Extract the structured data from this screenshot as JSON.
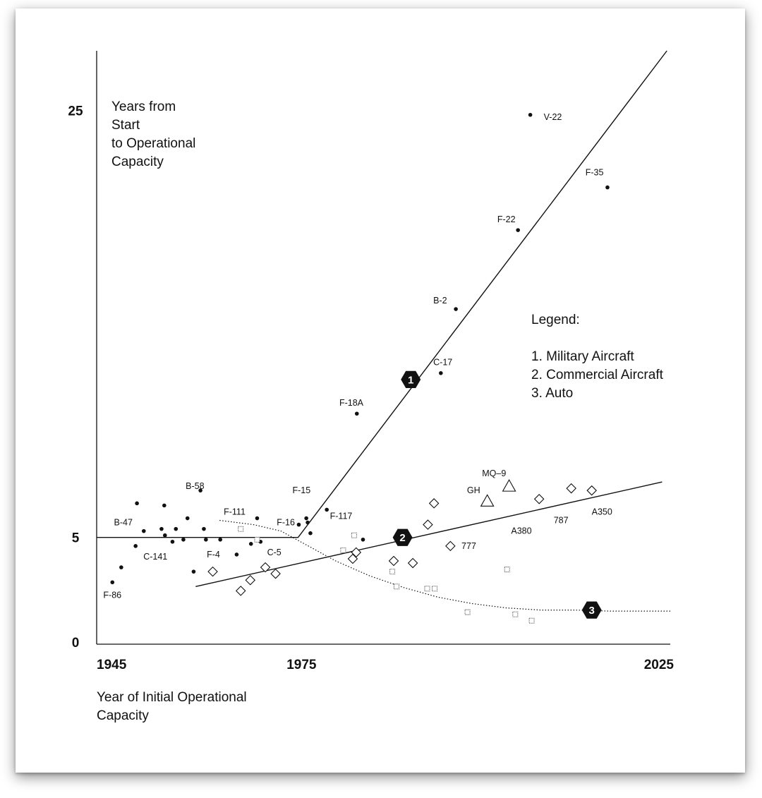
{
  "chart_data": {
    "type": "scatter",
    "title": "",
    "ylabel_lines": [
      "Years from",
      "Start",
      "to Operational",
      "Capacity"
    ],
    "xlabel_lines": [
      "Year of Initial Operational",
      "Capacity"
    ],
    "x_ticks": [
      "1945",
      "1975",
      "2025"
    ],
    "y_ticks": [
      "25",
      "5",
      "0"
    ],
    "xlim": [
      1945,
      2029
    ],
    "ylim": [
      0,
      27.8
    ],
    "legend": {
      "title": "Legend:",
      "items": [
        "1. Military Aircraft",
        "2. Commercial Aircraft",
        "3. Auto"
      ],
      "placement": "right"
    },
    "trend_lines": [
      {
        "id": "1",
        "style": "solid",
        "points": [
          [
            1945,
            5.0
          ],
          [
            1974.5,
            5.0
          ],
          [
            2028.5,
            27.8
          ]
        ],
        "badge": [
          1991,
          12.4
        ]
      },
      {
        "id": "2",
        "style": "solid",
        "points": [
          [
            1959.5,
            2.7
          ],
          [
            2027.8,
            7.6
          ]
        ],
        "badge": [
          1989.8,
          5.0
        ]
      },
      {
        "id": "3",
        "style": "dotted",
        "points": [
          [
            1963.0,
            5.8
          ],
          [
            1968,
            5.6
          ],
          [
            1972,
            5.3
          ],
          [
            1976,
            4.6
          ],
          [
            1980,
            3.9
          ],
          [
            1985,
            3.2
          ],
          [
            1990,
            2.65
          ],
          [
            1995,
            2.2
          ],
          [
            2000,
            1.9
          ],
          [
            2005,
            1.7
          ],
          [
            2010,
            1.6
          ],
          [
            2015,
            1.6
          ],
          [
            2020,
            1.55
          ],
          [
            2029,
            1.55
          ]
        ],
        "badge": [
          2017.5,
          1.6
        ]
      }
    ],
    "series": [
      {
        "name": "Military Aircraft",
        "marker": "dot",
        "points": [
          [
            1947.3,
            2.9
          ],
          [
            1948.6,
            3.6
          ],
          [
            1950.7,
            4.6
          ],
          [
            1950.9,
            6.6
          ],
          [
            1951.9,
            5.3
          ],
          [
            1954.9,
            6.5
          ],
          [
            1954.5,
            5.4
          ],
          [
            1955.0,
            5.1
          ],
          [
            1956.1,
            4.8
          ],
          [
            1956.6,
            5.4
          ],
          [
            1957.7,
            4.9
          ],
          [
            1958.3,
            5.9
          ],
          [
            1959.2,
            3.4
          ],
          [
            1960.2,
            7.2
          ],
          [
            1960.7,
            5.4
          ],
          [
            1961.0,
            4.9
          ],
          [
            1963.1,
            4.9
          ],
          [
            1965.5,
            4.2
          ],
          [
            1967.6,
            4.7
          ],
          [
            1968.5,
            5.9
          ],
          [
            1969.0,
            4.8
          ],
          [
            1974.6,
            5.6
          ],
          [
            1975.7,
            5.9
          ],
          [
            1975.9,
            5.7
          ],
          [
            1976.3,
            5.2
          ],
          [
            1978.7,
            6.3
          ],
          [
            1983.1,
            10.8
          ],
          [
            1984.0,
            4.9
          ],
          [
            1995.4,
            12.7
          ],
          [
            1997.6,
            15.7
          ],
          [
            2006.7,
            19.4
          ],
          [
            2008.5,
            24.8
          ],
          [
            2019.8,
            21.4
          ]
        ],
        "labels": [
          {
            "text": "F-86",
            "at": [
              1947.3,
              2.3
            ]
          },
          {
            "text": "B-47",
            "at": [
              1948.9,
              5.7
            ]
          },
          {
            "text": "C-141",
            "at": [
              1953.6,
              4.1
            ]
          },
          {
            "text": "B-58",
            "at": [
              1959.4,
              7.4
            ]
          },
          {
            "text": "F-4",
            "at": [
              1962.1,
              4.2
            ]
          },
          {
            "text": "F-111",
            "at": [
              1965.2,
              6.2
            ]
          },
          {
            "text": "C-5",
            "at": [
              1971.0,
              4.3
            ]
          },
          {
            "text": "F-16",
            "at": [
              1972.7,
              5.7
            ]
          },
          {
            "text": "F-15",
            "at": [
              1975.0,
              7.2
            ]
          },
          {
            "text": "F-117",
            "at": [
              1980.8,
              6.0
            ]
          },
          {
            "text": "F-18A",
            "at": [
              1982.3,
              11.3
            ]
          },
          {
            "text": "C-17",
            "at": [
              1995.7,
              13.2
            ]
          },
          {
            "text": "B-2",
            "at": [
              1995.3,
              16.1
            ]
          },
          {
            "text": "F-22",
            "at": [
              2005.0,
              19.9
            ]
          },
          {
            "text": "V-22",
            "at": [
              2011.8,
              24.7
            ]
          },
          {
            "text": "F-35",
            "at": [
              2017.9,
              22.1
            ]
          }
        ]
      },
      {
        "name": "Commercial Aircraft",
        "marker": "diamond",
        "points": [
          [
            1962.0,
            3.4
          ],
          [
            1966.1,
            2.5
          ],
          [
            1967.5,
            3.0
          ],
          [
            1969.7,
            3.6
          ],
          [
            1971.2,
            3.3
          ],
          [
            1982.5,
            4.0
          ],
          [
            1983.0,
            4.3
          ],
          [
            1988.5,
            3.9
          ],
          [
            1991.3,
            3.8
          ],
          [
            1993.5,
            5.6
          ],
          [
            1994.4,
            6.6
          ],
          [
            1996.8,
            4.6
          ],
          [
            2009.8,
            6.8
          ],
          [
            2014.5,
            7.3
          ],
          [
            2017.5,
            7.2
          ]
        ],
        "triangles": [
          [
            2002.2,
            6.7
          ],
          [
            2005.4,
            7.4
          ]
        ],
        "labels": [
          {
            "text": "MQ–9",
            "at": [
              2003.2,
              8.0
            ]
          },
          {
            "text": "GH",
            "at": [
              2000.2,
              7.2
            ]
          },
          {
            "text": "777",
            "at": [
              1999.5,
              4.6
            ]
          },
          {
            "text": "A380",
            "at": [
              2007.2,
              5.3
            ]
          },
          {
            "text": "787",
            "at": [
              2013.0,
              5.8
            ]
          },
          {
            "text": "A350",
            "at": [
              2019.0,
              6.2
            ]
          }
        ]
      },
      {
        "name": "Auto",
        "marker": "square",
        "points": [
          [
            1966.1,
            5.4
          ],
          [
            1968.5,
            4.9
          ],
          [
            1981.1,
            4.4
          ],
          [
            1982.7,
            5.1
          ],
          [
            1988.3,
            3.4
          ],
          [
            1988.9,
            2.7
          ],
          [
            1993.4,
            2.6
          ],
          [
            1994.5,
            2.6
          ],
          [
            1999.3,
            1.5
          ],
          [
            2005.1,
            3.5
          ],
          [
            2006.3,
            1.4
          ],
          [
            2008.7,
            1.1
          ]
        ]
      }
    ]
  }
}
